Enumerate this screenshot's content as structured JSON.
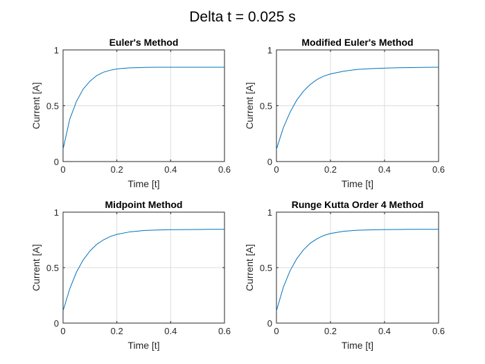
{
  "figure": {
    "title": "Delta t = 0.025 s"
  },
  "chart_data": [
    {
      "type": "line",
      "title": "Euler's Method",
      "xlabel": "Time [t]",
      "ylabel": "Current [A]",
      "xlim": [
        0,
        0.6
      ],
      "ylim": [
        0,
        1
      ],
      "xticks": [
        "0",
        "0.2",
        "0.4",
        "0.6"
      ],
      "yticks": [
        "0",
        "0.5",
        "1"
      ],
      "grid": true,
      "series": [
        {
          "color": "#0072BD",
          "x": [
            0,
            0.025,
            0.05,
            0.075,
            0.1,
            0.125,
            0.15,
            0.175,
            0.2,
            0.225,
            0.25,
            0.275,
            0.3,
            0.325,
            0.35,
            0.4,
            0.45,
            0.5,
            0.55,
            0.6
          ],
          "values": [
            0.11,
            0.38,
            0.54,
            0.65,
            0.72,
            0.77,
            0.8,
            0.818,
            0.829,
            0.835,
            0.839,
            0.841,
            0.843,
            0.844,
            0.845,
            0.845,
            0.845,
            0.845,
            0.845,
            0.845
          ]
        }
      ]
    },
    {
      "type": "line",
      "title": "Modified Euler's Method",
      "xlabel": "Time [t]",
      "ylabel": "Current [A]",
      "xlim": [
        0,
        0.6
      ],
      "ylim": [
        0,
        1
      ],
      "xticks": [
        "0",
        "0.2",
        "0.4",
        "0.6"
      ],
      "yticks": [
        "0",
        "0.5",
        "1"
      ],
      "grid": true,
      "series": [
        {
          "color": "#0072BD",
          "x": [
            0,
            0.025,
            0.05,
            0.075,
            0.1,
            0.125,
            0.15,
            0.175,
            0.2,
            0.25,
            0.3,
            0.35,
            0.4,
            0.45,
            0.5,
            0.55,
            0.6
          ],
          "values": [
            0.11,
            0.3,
            0.44,
            0.55,
            0.63,
            0.69,
            0.735,
            0.765,
            0.785,
            0.81,
            0.825,
            0.832,
            0.837,
            0.84,
            0.842,
            0.844,
            0.845
          ]
        }
      ]
    },
    {
      "type": "line",
      "title": "Midpoint Method",
      "xlabel": "Time [t]",
      "ylabel": "Current [A]",
      "xlim": [
        0,
        0.6
      ],
      "ylim": [
        0,
        1
      ],
      "xticks": [
        "0",
        "0.2",
        "0.4",
        "0.6"
      ],
      "yticks": [
        "0",
        "0.5",
        "1"
      ],
      "grid": true,
      "series": [
        {
          "color": "#0072BD",
          "x": [
            0,
            0.025,
            0.05,
            0.075,
            0.1,
            0.125,
            0.15,
            0.175,
            0.2,
            0.25,
            0.3,
            0.35,
            0.4,
            0.45,
            0.5,
            0.55,
            0.6
          ],
          "values": [
            0.11,
            0.31,
            0.46,
            0.57,
            0.65,
            0.71,
            0.75,
            0.78,
            0.8,
            0.823,
            0.834,
            0.839,
            0.842,
            0.843,
            0.844,
            0.845,
            0.845
          ]
        }
      ]
    },
    {
      "type": "line",
      "title": "Runge Kutta Order 4 Method",
      "xlabel": "Time [t]",
      "ylabel": "Current [A]",
      "xlim": [
        0,
        0.6
      ],
      "ylim": [
        0,
        1
      ],
      "xticks": [
        "0",
        "0.2",
        "0.4",
        "0.6"
      ],
      "yticks": [
        "0",
        "0.5",
        "1"
      ],
      "grid": true,
      "series": [
        {
          "color": "#0072BD",
          "x": [
            0,
            0.025,
            0.05,
            0.075,
            0.1,
            0.125,
            0.15,
            0.175,
            0.2,
            0.25,
            0.3,
            0.35,
            0.4,
            0.45,
            0.5,
            0.55,
            0.6
          ],
          "values": [
            0.11,
            0.32,
            0.47,
            0.58,
            0.66,
            0.72,
            0.76,
            0.79,
            0.808,
            0.828,
            0.837,
            0.841,
            0.843,
            0.844,
            0.845,
            0.845,
            0.845
          ]
        }
      ]
    }
  ]
}
